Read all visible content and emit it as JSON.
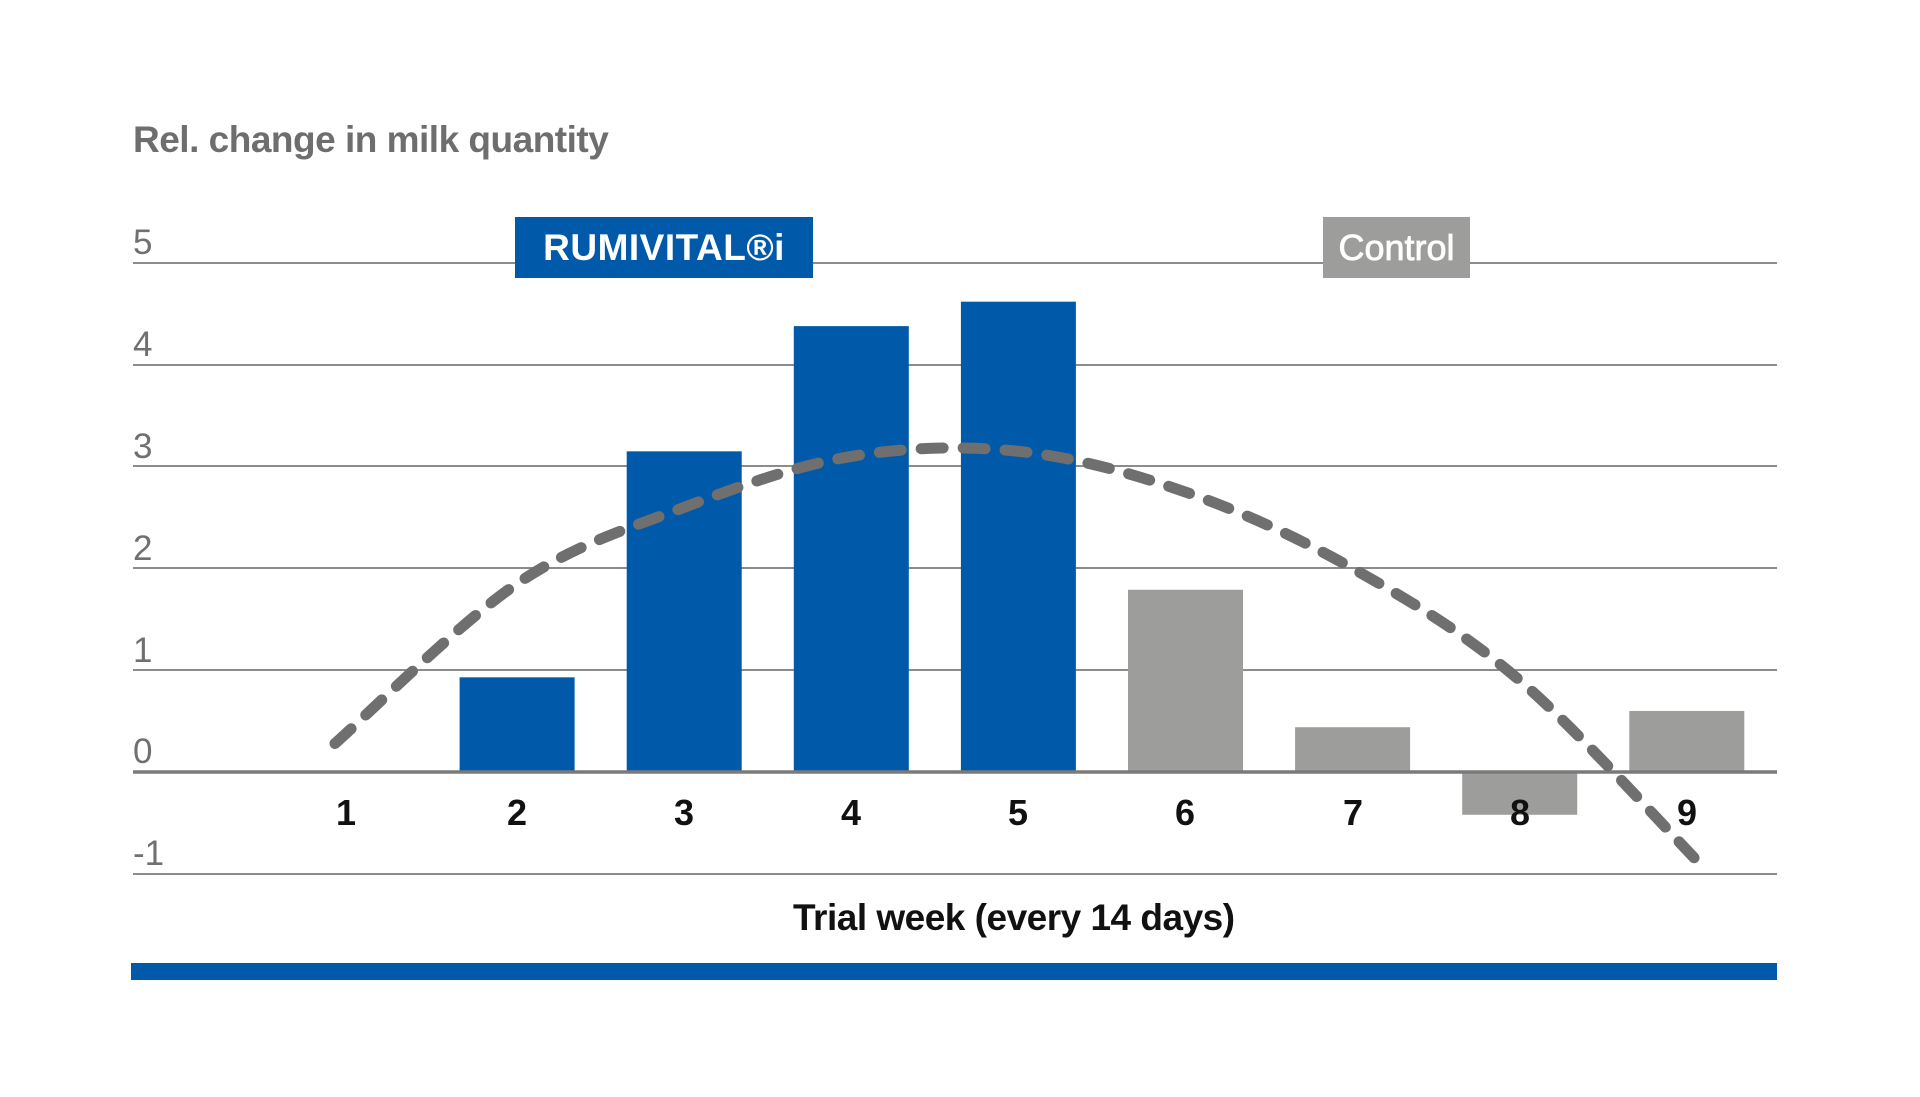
{
  "chart_data": {
    "type": "bar",
    "title": "Rel. change in milk quantity",
    "xlabel": "Trial week (every 14 days)",
    "ylabel": "Rel. change in milk quantity",
    "categories": [
      "1",
      "2",
      "3",
      "4",
      "5",
      "6",
      "7",
      "8",
      "9"
    ],
    "ylim": [
      -1,
      5
    ],
    "yticks": [
      5,
      4,
      3,
      2,
      1,
      0,
      -1
    ],
    "grid": true,
    "legend_position": "top",
    "series": [
      {
        "name": "RUMIVITAL®i",
        "color": "#005AA9",
        "values": [
          null,
          0.93,
          3.15,
          4.38,
          4.62,
          null,
          null,
          null,
          null
        ]
      },
      {
        "name": "Control",
        "color": "#9d9d9c",
        "values": [
          null,
          null,
          null,
          null,
          null,
          1.79,
          0.44,
          -0.42,
          0.6
        ]
      },
      {
        "name": "Trend (dashed)",
        "type": "line",
        "style": "dashed",
        "color": "#6f6f6f",
        "values": [
          0.28,
          1.85,
          2.6,
          3.1,
          3.15,
          2.75,
          2.0,
          0.9,
          -0.9
        ]
      }
    ]
  },
  "labels": {
    "title": "Rel. change in milk quantity",
    "yticks": [
      "5",
      "4",
      "3",
      "2",
      "1",
      "0",
      "-1"
    ],
    "xticks": [
      "1",
      "2",
      "3",
      "4",
      "5",
      "6",
      "7",
      "8",
      "9"
    ],
    "x_axis_title": "Trial week (every 14 days)",
    "legend_rumivital": "RUMIVITAL®i",
    "legend_control": "Control"
  },
  "colors": {
    "brand_blue": "#005AA9",
    "control_gray": "#9d9d9c",
    "trend_gray": "#6f6f6f",
    "grid": "#8c8c8c"
  }
}
